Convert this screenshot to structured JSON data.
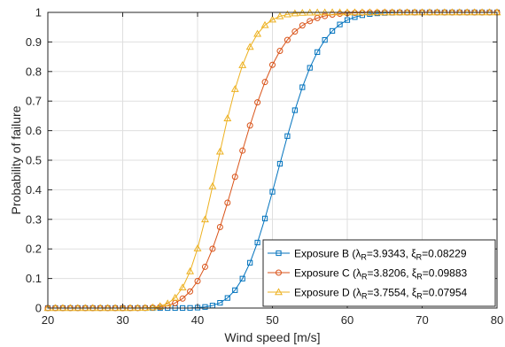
{
  "chart_data": {
    "type": "line",
    "xlabel": "Wind speed [m/s]",
    "ylabel": "Probability of failure",
    "xlim": [
      20,
      80
    ],
    "ylim": [
      0,
      1
    ],
    "x_ticks": [
      20,
      30,
      40,
      50,
      60,
      70,
      80
    ],
    "y_ticks": [
      0,
      0.1,
      0.2,
      0.3,
      0.4,
      0.5,
      0.6,
      0.7,
      0.8,
      0.9,
      1
    ],
    "x_tick_labels": [
      "20",
      "30",
      "40",
      "50",
      "60",
      "70",
      "80"
    ],
    "y_tick_labels": [
      "0",
      "0.1",
      "0.2",
      "0.3",
      "0.4",
      "0.5",
      "0.6",
      "0.7",
      "0.8",
      "0.9",
      "1"
    ],
    "grid": true,
    "legend_position": "bottom-right",
    "series": [
      {
        "name": "Exposure B",
        "legend_label": "Exposure B (λR=3.9343, ξR=0.08229",
        "legend_parts": {
          "prefix": "Exposure B (",
          "lambda_sym": "λ",
          "lambda_sub": "R",
          "lambda_val": "=3.9343, ",
          "xi_sym": "ξ",
          "xi_sub": "R",
          "xi_val": "=0.08229"
        },
        "lambda": 3.9343,
        "xi": 0.08229,
        "color": "#0072BD",
        "marker": "square"
      },
      {
        "name": "Exposure C",
        "legend_label": "Exposure C (λR=3.8206, ξR=0.09883",
        "legend_parts": {
          "prefix": "Exposure C (",
          "lambda_sym": "λ",
          "lambda_sub": "R",
          "lambda_val": "=3.8206, ",
          "xi_sym": "ξ",
          "xi_sub": "R",
          "xi_val": "=0.09883"
        },
        "lambda": 3.8206,
        "xi": 0.09883,
        "color": "#D95319",
        "marker": "circle"
      },
      {
        "name": "Exposure D",
        "legend_label": "Exposure D (λR=3.7554, ξR=0.07954",
        "legend_parts": {
          "prefix": "Exposure D (",
          "lambda_sym": "λ",
          "lambda_sub": "R",
          "lambda_val": "=3.7554, ",
          "xi_sym": "ξ",
          "xi_sub": "R",
          "xi_val": "=0.07954"
        },
        "lambda": 3.7554,
        "xi": 0.07954,
        "color": "#EDB120",
        "marker": "triangle"
      }
    ]
  }
}
